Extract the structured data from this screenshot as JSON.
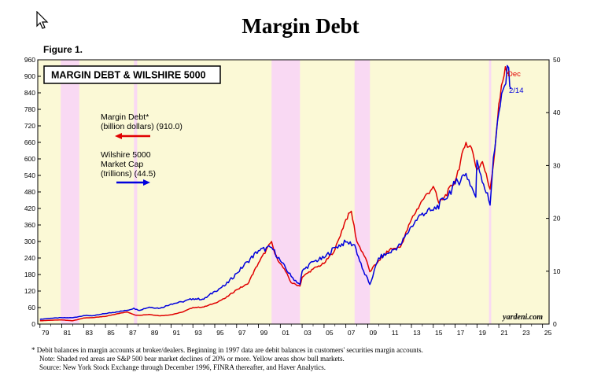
{
  "title": "Margin Debt",
  "figure_label": "Figure 1.",
  "chart_data": {
    "type": "line",
    "title": "MARGIN DEBT & WILSHIRE 5000",
    "x_ticks": [
      "79",
      "81",
      "83",
      "85",
      "87",
      "89",
      "91",
      "93",
      "95",
      "97",
      "99",
      "01",
      "03",
      "05",
      "07",
      "09",
      "11",
      "13",
      "15",
      "17",
      "19",
      "21",
      "23",
      "25"
    ],
    "xlim": [
      1979,
      2025
    ],
    "y_left": {
      "ticks": [
        "0",
        "60",
        "120",
        "180",
        "240",
        "300",
        "360",
        "420",
        "480",
        "540",
        "600",
        "660",
        "720",
        "780",
        "840",
        "900",
        "960"
      ],
      "ylim": [
        0,
        960
      ]
    },
    "y_right": {
      "ticks": [
        "0",
        "10",
        "20",
        "30",
        "40",
        "50"
      ],
      "ylim": [
        0,
        50
      ]
    },
    "grid": false,
    "shaded_bear_markets": [
      [
        1980.9,
        1982.6
      ],
      [
        1987.6,
        1987.9
      ],
      [
        2000.2,
        2002.8
      ],
      [
        2007.8,
        2009.2
      ],
      [
        2020.1,
        2020.3
      ]
    ],
    "series": [
      {
        "name": "Margin Debt*",
        "sublabel": "(billion dollars) (910.0)",
        "axis": "left",
        "color": "#e00000",
        "x": [
          1979,
          1980,
          1981,
          1982,
          1983,
          1984,
          1985,
          1986,
          1987,
          1987.8,
          1988,
          1989,
          1990,
          1991,
          1992,
          1993,
          1994,
          1995,
          1996,
          1997,
          1998,
          1999,
          2000.2,
          2000.5,
          2001,
          2001.5,
          2002,
          2002.8,
          2003,
          2004,
          2005,
          2006,
          2007,
          2007.5,
          2008,
          2008.8,
          2009.2,
          2010,
          2011,
          2012,
          2013,
          2014,
          2015,
          2015.5,
          2016,
          2017,
          2018,
          2018.5,
          2019,
          2019.5,
          2020.2,
          2020.5,
          2021,
          2021.6,
          2021.9
        ],
        "values": [
          12,
          14,
          15,
          12,
          22,
          24,
          28,
          37,
          44,
          32,
          32,
          35,
          30,
          34,
          43,
          60,
          62,
          76,
          95,
          125,
          145,
          222,
          300,
          255,
          220,
          190,
          150,
          138,
          170,
          200,
          220,
          270,
          380,
          410,
          300,
          240,
          190,
          230,
          270,
          280,
          380,
          450,
          500,
          440,
          460,
          520,
          660,
          640,
          560,
          590,
          490,
          580,
          800,
          935,
          910
        ]
      },
      {
        "name": "Wilshire 5000",
        "sublabel": "Market Cap",
        "sublabel2": "(trillions) (44.5)",
        "axis": "right",
        "color": "#0000dd",
        "x": [
          1979,
          1980,
          1981,
          1982,
          1983,
          1984,
          1985,
          1986,
          1987,
          1987.6,
          1988,
          1989,
          1990,
          1991,
          1992,
          1993,
          1994,
          1995,
          1996,
          1997,
          1998,
          1999,
          2000.2,
          2001,
          2002,
          2002.8,
          2003,
          2004,
          2005,
          2006,
          2007,
          2007.8,
          2008.5,
          2009.2,
          2010,
          2011,
          2012,
          2013,
          2014,
          2015,
          2016,
          2017,
          2018,
          2018.9,
          2019,
          2020.2,
          2020.5,
          2021,
          2021.9,
          2022.1
        ],
        "values": [
          0.9,
          1.1,
          1.2,
          1.2,
          1.6,
          1.6,
          2.0,
          2.3,
          2.6,
          3.0,
          2.6,
          3.2,
          3.0,
          3.8,
          4.2,
          4.8,
          4.7,
          6.2,
          7.4,
          9.6,
          11.8,
          13.9,
          14.5,
          12.0,
          9.0,
          7.5,
          10.0,
          11.8,
          12.5,
          14.5,
          15.5,
          15.0,
          10.5,
          7.5,
          12.5,
          13.5,
          15.0,
          18.5,
          21.0,
          21.5,
          23.5,
          26.5,
          28.5,
          24.0,
          31.0,
          22.5,
          31.5,
          40.0,
          48.5,
          44.5
        ]
      }
    ],
    "annotations": {
      "dec": "Dec",
      "date": "2/14",
      "source": "yardeni.com"
    }
  },
  "footnotes": {
    "note1": "*  Debit balances in margin accounts at broker/dealers. Beginning in 1997 data are debit balances in customers' securities margin accounts.",
    "note2": "Note: Shaded red areas are S&P 500 bear market declines of 20% or more. Yellow areas show bull markets.",
    "note3": "Source: New York Stock Exchange through December 1996, FINRA thereafter, and Haver Analytics."
  },
  "colors": {
    "bull": "#fbf9d6",
    "bear": "#f9d9f3"
  }
}
